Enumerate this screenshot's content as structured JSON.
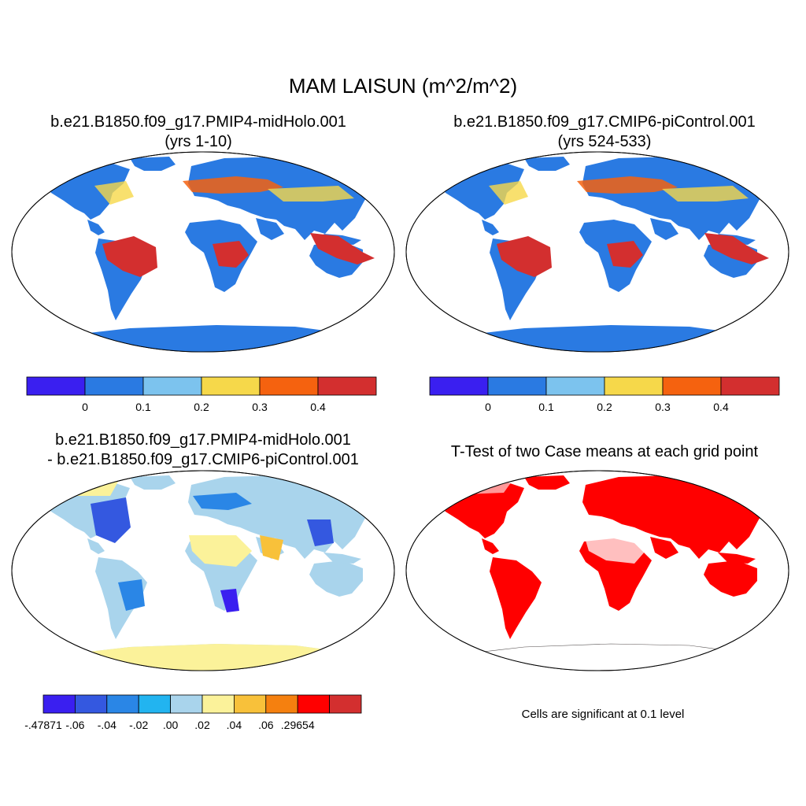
{
  "title": "MAM LAISUN (m^2/m^2)",
  "panels": [
    {
      "id": "p1",
      "title_line1": "b.e21.B1850.f09_g17.PMIP4-midHolo.001",
      "title_line2": "(yrs 1-10)"
    },
    {
      "id": "p2",
      "title_line1": "b.e21.B1850.f09_g17.CMIP6-piControl.001",
      "title_line2": "(yrs 524-533)"
    },
    {
      "id": "p3",
      "title_line1": "b.e21.B1850.f09_g17.PMIP4-midHolo.001",
      "title_line2": "- b.e21.B1850.f09_g17.CMIP6-piControl.001"
    },
    {
      "id": "p4",
      "title_line1": "T-Test of two Case means at each grid point",
      "title_line2": ""
    }
  ],
  "note": "Cells are significant at 0.1 level",
  "colorbars": {
    "abs": {
      "colors": [
        "#3a1ff0",
        "#2a7ae2",
        "#7cc3ee",
        "#f6d84a",
        "#f5620f",
        "#d32f2f"
      ],
      "labels": [
        "0",
        "0.1",
        "0.2",
        "0.3",
        "0.4"
      ]
    },
    "diff": {
      "colors": [
        "#3a1ff0",
        "#3458e0",
        "#2a86e6",
        "#22b4f0",
        "#a9d4ec",
        "#fbf29a",
        "#f8c13a",
        "#f5800f",
        "#ff0000",
        "#d32f2f"
      ],
      "labels": [
        "-.47871",
        "-.06",
        "-.04",
        "-.02",
        ".00",
        ".02",
        ".04",
        ".06",
        ".29654"
      ]
    }
  },
  "legend_colors": {
    "ocean": "#ffffff",
    "land_base": "#2a7ae2",
    "ttest": "#ff0000"
  }
}
